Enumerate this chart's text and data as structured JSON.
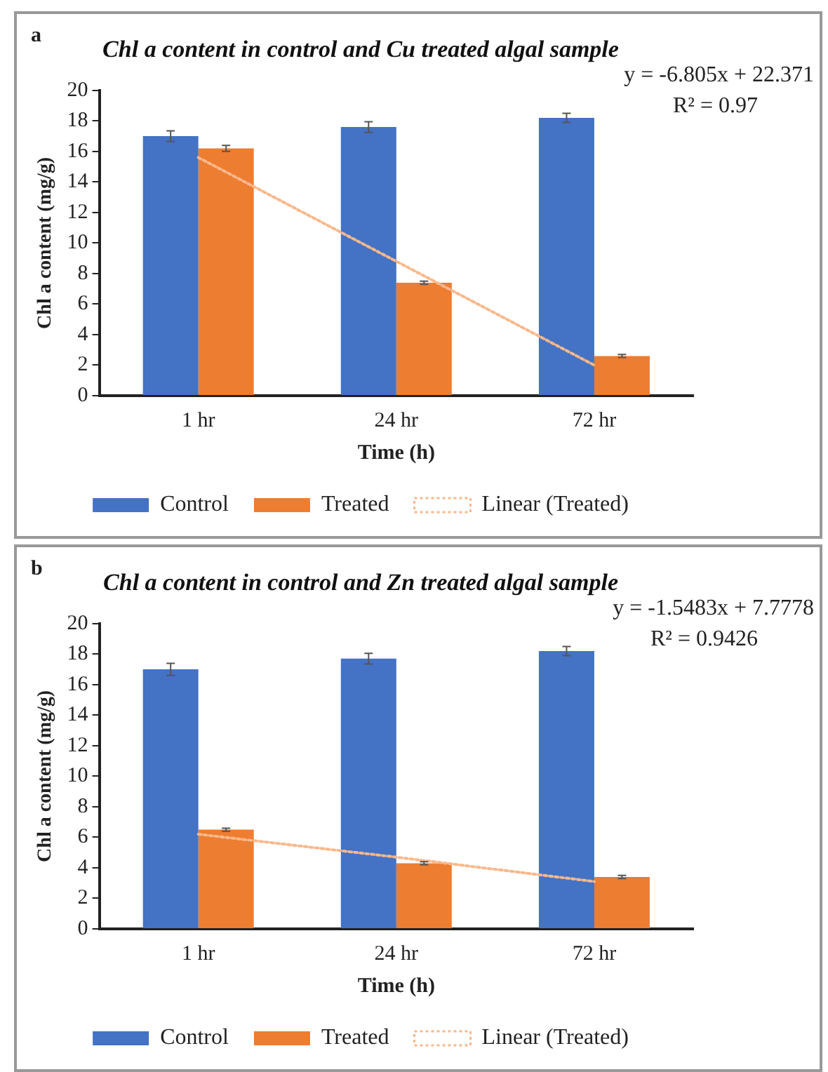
{
  "chart_data": [
    {
      "type": "bar",
      "title": "Chl a content in control and Cu treated algal sample",
      "xlabel": "Time (h)",
      "ylabel": "Chl a content (mg/g)",
      "categories": [
        "1 hr",
        "24 hr",
        "72 hr"
      ],
      "series": [
        {
          "name": "Control",
          "color": "#4472c4",
          "values": [
            17.0,
            17.6,
            18.2
          ],
          "errors": [
            0.35,
            0.35,
            0.3
          ]
        },
        {
          "name": "Treated",
          "color": "#ed7d31",
          "values": [
            16.2,
            7.4,
            2.6
          ],
          "errors": [
            0.2,
            0.1,
            0.1
          ]
        },
        {
          "name": "Linear (Treated)",
          "type": "line",
          "color": "#f8b88b",
          "line_style": "dotted",
          "marker": "none",
          "x": [
            "1 hr",
            "24 hr",
            "72 hr"
          ],
          "values": [
            15.6,
            8.8,
            2.0
          ]
        }
      ],
      "ylim": [
        0,
        20
      ],
      "yticks": [
        0,
        2,
        4,
        6,
        8,
        10,
        12,
        14,
        16,
        18,
        20
      ],
      "grid": false,
      "legend": "bottom",
      "annotations": [
        "a",
        "y = -6.805x + 22.371",
        "R² = 0.97"
      ]
    },
    {
      "type": "bar",
      "title": "Chl a content in control and Zn treated algal sample",
      "xlabel": "Time (h)",
      "ylabel": "Chl a content (mg/g)",
      "categories": [
        "1 hr",
        "24 hr",
        "72 hr"
      ],
      "series": [
        {
          "name": "Control",
          "color": "#4472c4",
          "values": [
            17.0,
            17.7,
            18.2
          ],
          "errors": [
            0.4,
            0.35,
            0.3
          ]
        },
        {
          "name": "Treated",
          "color": "#ed7d31",
          "values": [
            6.5,
            4.3,
            3.4
          ],
          "errors": [
            0.1,
            0.1,
            0.1
          ]
        },
        {
          "name": "Linear (Treated)",
          "type": "line",
          "color": "#f8b88b",
          "line_style": "dotted",
          "marker": "none",
          "x": [
            "1 hr",
            "24 hr",
            "72 hr"
          ],
          "values": [
            6.2,
            4.7,
            3.1
          ]
        }
      ],
      "ylim": [
        0,
        20
      ],
      "yticks": [
        0,
        2,
        4,
        6,
        8,
        10,
        12,
        14,
        16,
        18,
        20
      ],
      "grid": false,
      "legend": "bottom",
      "annotations": [
        "b",
        "y = -1.5483x + 7.7778",
        "R² = 0.9426"
      ]
    }
  ]
}
